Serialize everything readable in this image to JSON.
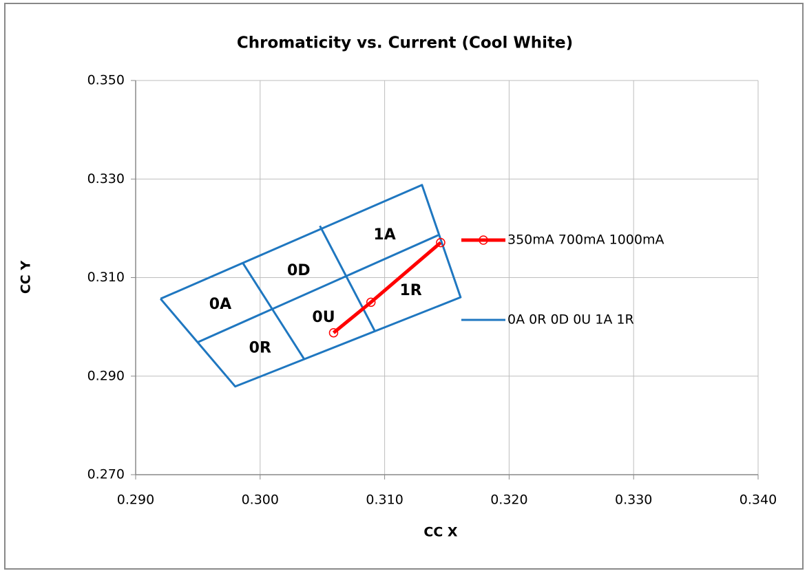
{
  "chart_data": {
    "type": "scatter",
    "title": "Chromaticity vs. Current (Cool White)",
    "x_label": "CC X",
    "y_label": "CC Y",
    "xlim": [
      0.29,
      0.34
    ],
    "xticks": [
      {
        "value": 0.29,
        "label": "0.290"
      },
      {
        "value": 0.3,
        "label": "0.300"
      },
      {
        "value": 0.31,
        "label": "0.310"
      },
      {
        "value": 0.32,
        "label": "0.320"
      },
      {
        "value": 0.33,
        "label": "0.330"
      },
      {
        "value": 0.34,
        "label": "0.340"
      }
    ],
    "ylim": [
      0.27,
      0.35
    ],
    "yticks": [
      {
        "value": 0.27,
        "label": "0.270"
      },
      {
        "value": 0.29,
        "label": "0.290"
      },
      {
        "value": 0.31,
        "label": "0.310"
      },
      {
        "value": 0.33,
        "label": "0.330"
      },
      {
        "value": 0.35,
        "label": "0.350"
      }
    ],
    "grid": true,
    "legend": "right",
    "series": [
      {
        "name": "350mA 700mA 1000mA",
        "color": "#ff0000",
        "markers": true,
        "x": [
          0.3059,
          0.3089,
          0.3145
        ],
        "y": [
          0.2988,
          0.305,
          0.3171
        ]
      },
      {
        "name": "0A 0R 0D 0U 1A 1R",
        "color": "#1f77c0",
        "markers": false,
        "x": [
          0.292,
          0.313,
          0.3161,
          0.298,
          0.292,
          null,
          0.295,
          0.3143,
          null,
          0.2986,
          0.3035,
          null,
          0.3048,
          0.3092
        ],
        "y": [
          0.3057,
          0.3288,
          0.306,
          0.2879,
          0.3057,
          null,
          0.2969,
          0.3186,
          null,
          0.313,
          0.2936,
          null,
          0.3205,
          0.2992
        ]
      }
    ],
    "annotations": [
      {
        "text": "0A",
        "x": 0.2968,
        "y": 0.3045
      },
      {
        "text": "0D",
        "x": 0.3031,
        "y": 0.3113
      },
      {
        "text": "1A",
        "x": 0.31,
        "y": 0.3186
      },
      {
        "text": "0U",
        "x": 0.3051,
        "y": 0.3018
      },
      {
        "text": "1R",
        "x": 0.3121,
        "y": 0.3073
      },
      {
        "text": "0R",
        "x": 0.3,
        "y": 0.2956
      }
    ]
  }
}
